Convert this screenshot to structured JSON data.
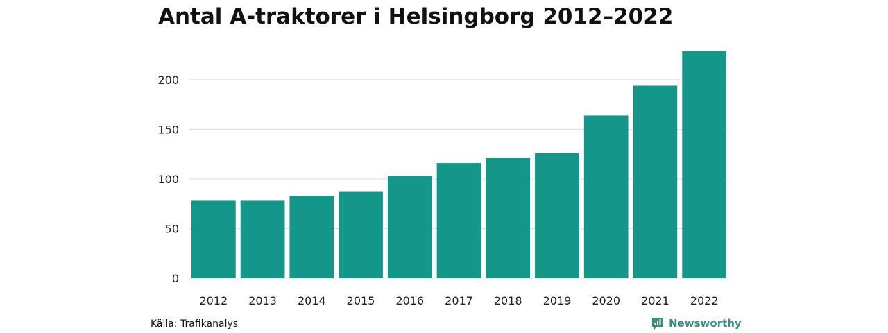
{
  "chart_data": {
    "type": "bar",
    "title": "Antal A-traktorer i Helsingborg 2012–2022",
    "xlabel": "",
    "ylabel": "",
    "categories": [
      "2012",
      "2013",
      "2014",
      "2015",
      "2016",
      "2017",
      "2018",
      "2019",
      "2020",
      "2021",
      "2022"
    ],
    "values": [
      78,
      78,
      83,
      87,
      103,
      116,
      121,
      126,
      164,
      194,
      229
    ],
    "ylim": [
      0,
      230
    ],
    "yticks": [
      0,
      50,
      100,
      150,
      200
    ],
    "grid": true,
    "legend": "none",
    "bar_color": "#15968a"
  },
  "footer": {
    "source": "Källa: Trafikanalys",
    "brand": "Newsworthy",
    "brand_icon": "newsworthy-logo-icon",
    "brand_color": "#3a8f82"
  }
}
